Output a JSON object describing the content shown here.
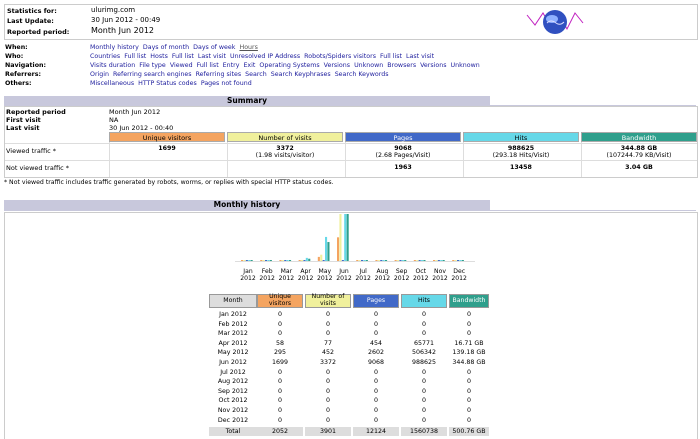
{
  "header": {
    "stats_for_label": "Statistics for:",
    "stats_for_value": "ulurimg.com",
    "last_update_label": "Last Update:",
    "last_update_value": "30 Jun 2012 - 00:49",
    "period_label": "Reported period:",
    "period_value": "Month Jun 2012"
  },
  "nav": [
    {
      "label": "When:",
      "links": [
        "Monthly history",
        "Days of month",
        "Days of week",
        "Hours"
      ]
    },
    {
      "label": "Who:",
      "links": [
        "Countries",
        "Full list",
        "Hosts",
        "Full list",
        "Last visit",
        "Unresolved IP Address",
        "Robots/Spiders visitors",
        "Full list",
        "Last visit"
      ]
    },
    {
      "label": "Navigation:",
      "links": [
        "Visits duration",
        "File type",
        "Viewed",
        "Full list",
        "Entry",
        "Exit",
        "Operating Systems",
        "Versions",
        "Unknown",
        "Browsers",
        "Versions",
        "Unknown"
      ]
    },
    {
      "label": "Referrers:",
      "links": [
        "Origin",
        "Referring search engines",
        "Referring sites",
        "Search",
        "Search Keyphrases",
        "Search Keywords"
      ]
    },
    {
      "label": "Others:",
      "links": [
        "Miscellaneous",
        "HTTP Status codes",
        "Pages not found"
      ]
    }
  ],
  "summary": {
    "title": "Summary",
    "reported_period_label": "Reported period",
    "reported_period_value": "Month Jun 2012",
    "first_visit_label": "First visit",
    "first_visit_value": "NA",
    "last_visit_label": "Last visit",
    "last_visit_value": "30 Jun 2012 - 00:40",
    "columns": [
      "Unique visitors",
      "Number of visits",
      "Pages",
      "Hits",
      "Bandwidth"
    ],
    "column_colors": [
      "#f4a460",
      "#f0f09c",
      "#4169c8",
      "#66d8e8",
      "#2f9f8c"
    ],
    "viewed_label": "Viewed traffic *",
    "viewed": [
      "1699",
      "3372",
      "9068",
      "988625",
      "344.88 GB"
    ],
    "viewed_sub": [
      "",
      "(1.98 visits/visitor)",
      "(2.68 Pages/Visit)",
      "(293.18 Hits/Visit)",
      "(107244.79 KB/Visit)"
    ],
    "not_viewed_label": "Not viewed traffic *",
    "not_viewed": [
      "",
      "",
      "1963",
      "13458",
      "3.04 GB"
    ],
    "footnote": "* Not viewed traffic includes traffic generated by robots, worms, or replies with special HTTP status codes."
  },
  "monthly": {
    "title": "Monthly history",
    "table_headers": [
      "Month",
      "Unique visitors",
      "Number of visits",
      "Pages",
      "Hits",
      "Bandwidth"
    ],
    "rows": [
      [
        "Jan 2012",
        "0",
        "0",
        "0",
        "0",
        "0"
      ],
      [
        "Feb 2012",
        "0",
        "0",
        "0",
        "0",
        "0"
      ],
      [
        "Mar 2012",
        "0",
        "0",
        "0",
        "0",
        "0"
      ],
      [
        "Apr 2012",
        "58",
        "77",
        "454",
        "65771",
        "16.71 GB"
      ],
      [
        "May 2012",
        "295",
        "452",
        "2602",
        "506342",
        "139.18 GB"
      ],
      [
        "Jun 2012",
        "1699",
        "3372",
        "9068",
        "988625",
        "344.88 GB"
      ],
      [
        "Jul 2012",
        "0",
        "0",
        "0",
        "0",
        "0"
      ],
      [
        "Aug 2012",
        "0",
        "0",
        "0",
        "0",
        "0"
      ],
      [
        "Sep 2012",
        "0",
        "0",
        "0",
        "0",
        "0"
      ],
      [
        "Oct 2012",
        "0",
        "0",
        "0",
        "0",
        "0"
      ],
      [
        "Nov 2012",
        "0",
        "0",
        "0",
        "0",
        "0"
      ],
      [
        "Dec 2012",
        "0",
        "0",
        "0",
        "0",
        "0"
      ]
    ],
    "total": [
      "Total",
      "2052",
      "3901",
      "12124",
      "1560738",
      "500.76 GB"
    ]
  },
  "chart_data": {
    "type": "bar",
    "categories": [
      "Jan 2012",
      "Feb 2012",
      "Mar 2012",
      "Apr 2012",
      "May 2012",
      "Jun 2012",
      "Jul 2012",
      "Aug 2012",
      "Sep 2012",
      "Oct 2012",
      "Nov 2012",
      "Dec 2012"
    ],
    "month_labels": [
      "Jan",
      "Feb",
      "Mar",
      "Apr",
      "May",
      "Jun",
      "Jul",
      "Aug",
      "Sep",
      "Oct",
      "Nov",
      "Dec"
    ],
    "year_label": "2012",
    "series": [
      {
        "values": [
          0,
          0,
          0,
          58,
          295,
          1699,
          0,
          0,
          0,
          0,
          0,
          0
        ],
        "color": "#f4a460"
      },
      {
        "values": [
          0,
          0,
          0,
          77,
          452,
          3372,
          0,
          0,
          0,
          0,
          0,
          0
        ],
        "color": "#f0f09c"
      },
      {
        "values": [
          0,
          0,
          0,
          454,
          2602,
          9068,
          0,
          0,
          0,
          0,
          0,
          0
        ],
        "color": "#4169c8"
      },
      {
        "values": [
          0,
          0,
          0,
          65771,
          506342,
          988625,
          0,
          0,
          0,
          0,
          0,
          0
        ],
        "color": "#66d8e8"
      },
      {
        "values": [
          0,
          0,
          0,
          16.71,
          139.18,
          344.88,
          0,
          0,
          0,
          0,
          0,
          0
        ],
        "color": "#2f9f8c"
      }
    ],
    "scale_groups": [
      [
        0,
        1
      ],
      [
        2,
        3
      ],
      [
        4
      ]
    ]
  }
}
